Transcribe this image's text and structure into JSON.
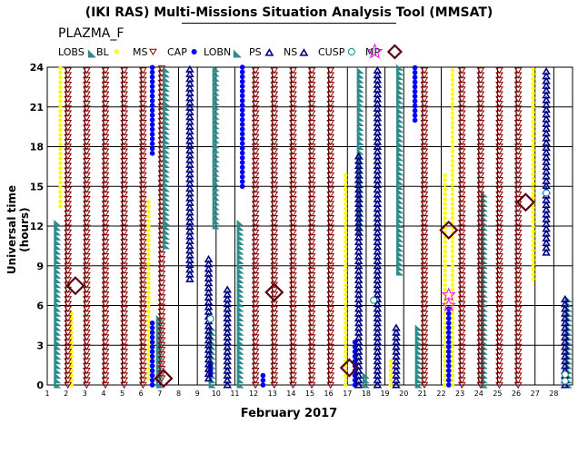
{
  "chart_data": {
    "type": "scatter",
    "title": "(IKI RAS) Multi-Missions Situation Analysis Tool (MMSAT)",
    "subtitle": "PLAZMA_F",
    "xlabel": "February 2017",
    "ylabel": "Universal time (hours)",
    "x_ticks": [
      "1",
      "2",
      "3",
      "4",
      "5",
      "6",
      "7",
      "8",
      "9",
      "10",
      "11",
      "12",
      "13",
      "14",
      "15",
      "16",
      "17",
      "18",
      "19",
      "20",
      "21",
      "22",
      "23",
      "24",
      "25",
      "26",
      "27",
      "28"
    ],
    "y_ticks": [
      0,
      3,
      6,
      9,
      12,
      15,
      18,
      21,
      24
    ],
    "xlim": [
      1,
      29
    ],
    "ylim": [
      0,
      24
    ],
    "grid": true,
    "legend_position": "top",
    "legend": [
      {
        "key": "LOBS",
        "label": "LOBS",
        "color": "#2e8b8b"
      },
      {
        "key": "BL",
        "label": "BL",
        "color": "#ffff00"
      },
      {
        "key": "MS",
        "label": "MS",
        "color": "#8b0000"
      },
      {
        "key": "CAP",
        "label": "CAP",
        "color": "#0000ff"
      },
      {
        "key": "LOBN",
        "label": "LOBN",
        "color": "#2e8b8b"
      },
      {
        "key": "PS",
        "label": "PS",
        "color": "#000080"
      },
      {
        "key": "NS",
        "label": "NS",
        "color": "#000080"
      },
      {
        "key": "CUSP",
        "label": "CUSP",
        "color": "#00a0a0"
      },
      {
        "key": "MP",
        "label": "MP",
        "color": "#ff00ff"
      }
    ],
    "series": [
      {
        "key": "LOBS",
        "segments": [
          [
            1.45,
            0,
            12.5
          ],
          [
            6.9,
            0,
            5.2
          ],
          [
            9.7,
            0,
            4.5
          ],
          [
            17.9,
            0,
            1
          ],
          [
            20.7,
            0,
            4.5
          ],
          [
            24.2,
            0,
            14.5
          ],
          [
            28.7,
            0,
            6.5
          ]
        ]
      },
      {
        "key": "BL",
        "segments": [
          [
            1.7,
            13.5,
            24
          ],
          [
            2.3,
            0,
            5.5
          ],
          [
            6.4,
            0.5,
            14
          ],
          [
            16.9,
            0,
            16
          ],
          [
            19.3,
            0,
            2
          ],
          [
            22.2,
            0,
            16
          ],
          [
            22.6,
            0,
            24
          ],
          [
            26.9,
            8,
            24
          ]
        ]
      },
      {
        "key": "MS",
        "segments": [
          [
            2.1,
            0,
            24
          ],
          [
            3.1,
            0,
            24
          ],
          [
            4.1,
            0,
            24
          ],
          [
            5.1,
            0,
            24
          ],
          [
            6.1,
            0,
            24
          ],
          [
            7.1,
            0.5,
            24
          ],
          [
            12.1,
            0,
            24
          ],
          [
            13.1,
            0,
            24
          ],
          [
            14.1,
            0,
            24
          ],
          [
            15.1,
            0,
            24
          ],
          [
            16.1,
            0,
            24
          ],
          [
            21.1,
            0,
            24
          ],
          [
            23.1,
            0,
            24
          ],
          [
            24.1,
            0,
            24
          ],
          [
            25.1,
            0,
            24
          ],
          [
            26.1,
            0,
            24
          ]
        ]
      },
      {
        "key": "CAP",
        "segments": [
          [
            6.6,
            17.5,
            24
          ],
          [
            6.6,
            0,
            5
          ],
          [
            9.7,
            0.8,
            1.6
          ],
          [
            11.4,
            15,
            24
          ],
          [
            12.5,
            0,
            1
          ],
          [
            17.4,
            0,
            3.5
          ],
          [
            20.6,
            20,
            24
          ],
          [
            22.4,
            0,
            6
          ]
        ]
      },
      {
        "key": "LOBN",
        "segments": [
          [
            1.45,
            0,
            0
          ],
          [
            7.25,
            10.5,
            24
          ],
          [
            9.3,
            0,
            0
          ],
          [
            9.9,
            12,
            24
          ],
          [
            11.2,
            0,
            12.5
          ],
          [
            17.6,
            11.5,
            24
          ],
          [
            19.7,
            8.5,
            24
          ],
          [
            22.8,
            0,
            0
          ],
          [
            28.3,
            0,
            0
          ]
        ]
      },
      {
        "key": "PS",
        "segments": [
          [
            8.6,
            8,
            24
          ],
          [
            9.6,
            0.5,
            9.5
          ],
          [
            10.6,
            0,
            7.5
          ],
          [
            17.6,
            0,
            17.5
          ],
          [
            18.6,
            0,
            24
          ],
          [
            19.6,
            0,
            4.5
          ],
          [
            27.6,
            10,
            24
          ],
          [
            28.6,
            0,
            6.5
          ]
        ]
      },
      {
        "key": "NS",
        "segments": []
      }
    ],
    "points": [
      {
        "key": "MP",
        "x": 2.5,
        "y": 7.5
      },
      {
        "key": "MP",
        "x": 7.2,
        "y": 0.5
      },
      {
        "key": "MP",
        "x": 13.1,
        "y": 7.0
      },
      {
        "key": "MP",
        "x": 17.1,
        "y": 1.3
      },
      {
        "key": "MP",
        "x": 22.4,
        "y": 11.7
      },
      {
        "key": "MP",
        "x": 26.5,
        "y": 13.8
      },
      {
        "key": "CUSP",
        "x": 9.7,
        "y": 5.0
      },
      {
        "key": "CUSP",
        "x": 18.4,
        "y": 6.4
      },
      {
        "key": "CUSP",
        "x": 27.6,
        "y": 14.5
      },
      {
        "key": "CUSP",
        "x": 28.6,
        "y": 0.8
      },
      {
        "key": "CUSP",
        "x": 28.6,
        "y": 0.3
      },
      {
        "key": "MP_star",
        "x": 22.4,
        "y": 6.0
      },
      {
        "key": "MP_star",
        "x": 22.4,
        "y": 6.8
      }
    ]
  }
}
